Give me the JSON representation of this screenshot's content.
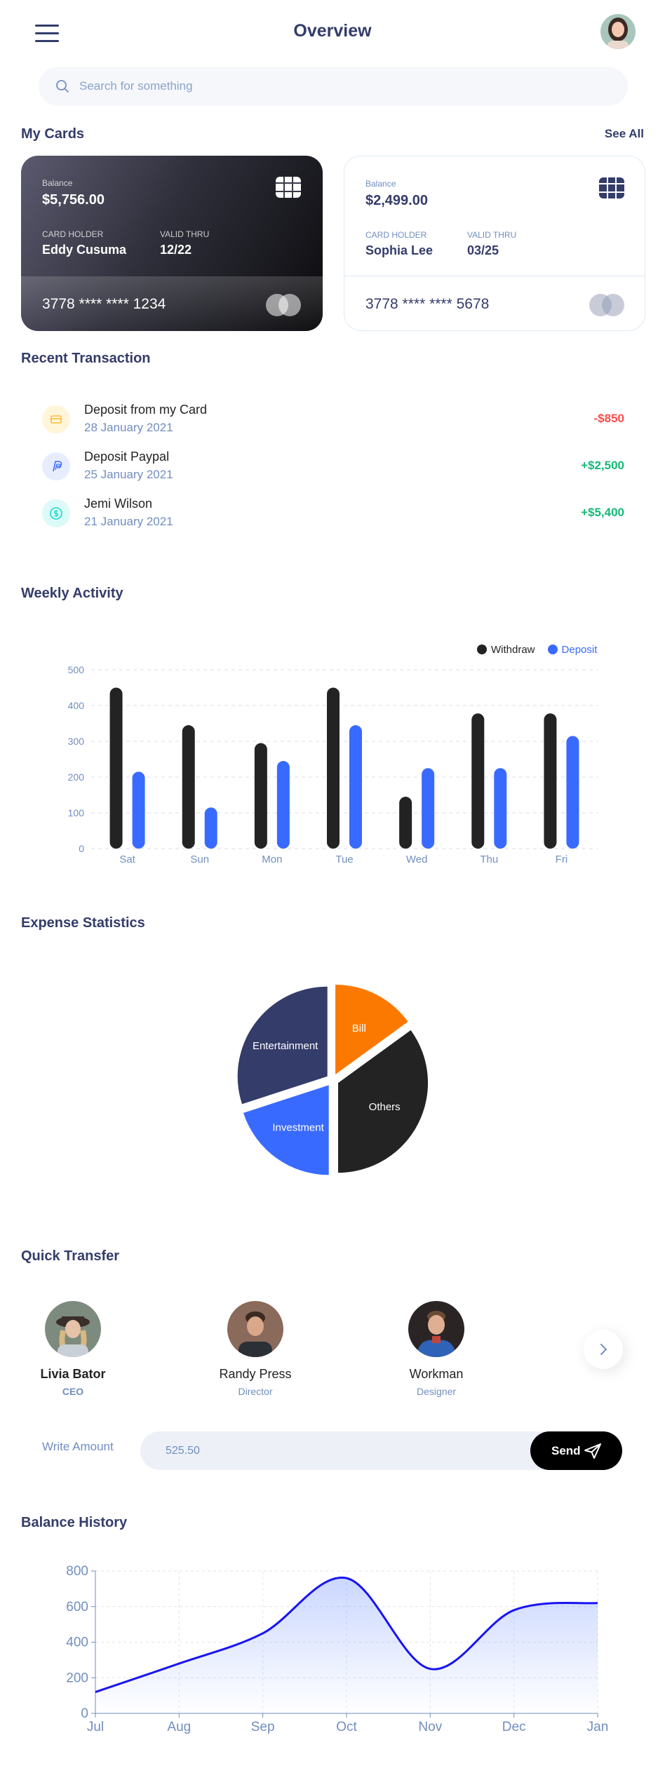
{
  "header": {
    "title": "Overview"
  },
  "search": {
    "placeholder": "Search for something"
  },
  "cards_section": {
    "title": "My Cards",
    "see_all": "See All"
  },
  "cards": [
    {
      "balance_label": "Balance",
      "balance": "$5,756.00",
      "holder_label": "CARD HOLDER",
      "holder": "Eddy Cusuma",
      "valid_label": "VALID THRU",
      "valid": "12/22",
      "number": "3778 **** **** 1234"
    },
    {
      "balance_label": "Balance",
      "balance": "$2,499.00",
      "holder_label": "CARD HOLDER",
      "holder": "Sophia Lee",
      "valid_label": "VALID THRU",
      "valid": "03/25",
      "number": "3778 **** **** 5678"
    }
  ],
  "transactions": {
    "title": "Recent Transaction",
    "items": [
      {
        "title": "Deposit from my Card",
        "date": "28 January 2021",
        "amount": "-$850",
        "icon": "card-icon",
        "color": "#ff4b4a"
      },
      {
        "title": "Deposit Paypal",
        "date": "25 January 2021",
        "amount": "+$2,500",
        "icon": "paypal-icon",
        "color": "#41d4a8"
      },
      {
        "title": "Jemi Wilson",
        "date": "21 January 2021",
        "amount": "+$5,400",
        "icon": "dollar-icon",
        "color": "#41d4a8"
      }
    ]
  },
  "weekly": {
    "title": "Weekly Activity",
    "chart_data": {
      "type": "bar",
      "categories": [
        "Sat",
        "Sun",
        "Mon",
        "Tue",
        "Wed",
        "Thu",
        "Fri"
      ],
      "series": [
        {
          "name": "Withdraw",
          "values": [
            450,
            345,
            295,
            450,
            145,
            378,
            378
          ],
          "color": "#232323"
        },
        {
          "name": "Deposit",
          "values": [
            215,
            115,
            245,
            345,
            225,
            225,
            315
          ],
          "color": "#396aff"
        }
      ],
      "yticks": [
        "0",
        "100",
        "200",
        "300",
        "400",
        "500"
      ],
      "ylim": [
        0,
        500
      ],
      "grid": true,
      "legend": "top-right"
    }
  },
  "expense": {
    "title": "Expense Statistics",
    "chart_data": {
      "type": "pie",
      "slices": [
        {
          "label": "Bill",
          "value": 15,
          "color": "#fc7900"
        },
        {
          "label": "Others",
          "value": 35,
          "color": "#232323"
        },
        {
          "label": "Investment",
          "value": 20,
          "color": "#396aff"
        },
        {
          "label": "Entertainment",
          "value": 30,
          "color": "#343c6a"
        }
      ]
    }
  },
  "quick_transfer": {
    "title": "Quick Transfer",
    "people": [
      {
        "name": "Livia Bator",
        "role": "CEO"
      },
      {
        "name": "Randy Press",
        "role": "Director"
      },
      {
        "name": "Workman",
        "role": "Designer"
      }
    ],
    "amount_label": "Write Amount",
    "amount_value": "525.50",
    "send_label": "Send"
  },
  "balance": {
    "title": "Balance History",
    "chart_data": {
      "type": "area",
      "x": [
        "Jul",
        "Aug",
        "Sep",
        "Oct",
        "Nov",
        "Dec",
        "Jan"
      ],
      "values": [
        120,
        280,
        450,
        760,
        250,
        580,
        620
      ],
      "yticks": [
        "0",
        "200",
        "400",
        "600",
        "800"
      ],
      "ylim": [
        0,
        800
      ],
      "grid": true,
      "color": "#1814f3"
    }
  }
}
